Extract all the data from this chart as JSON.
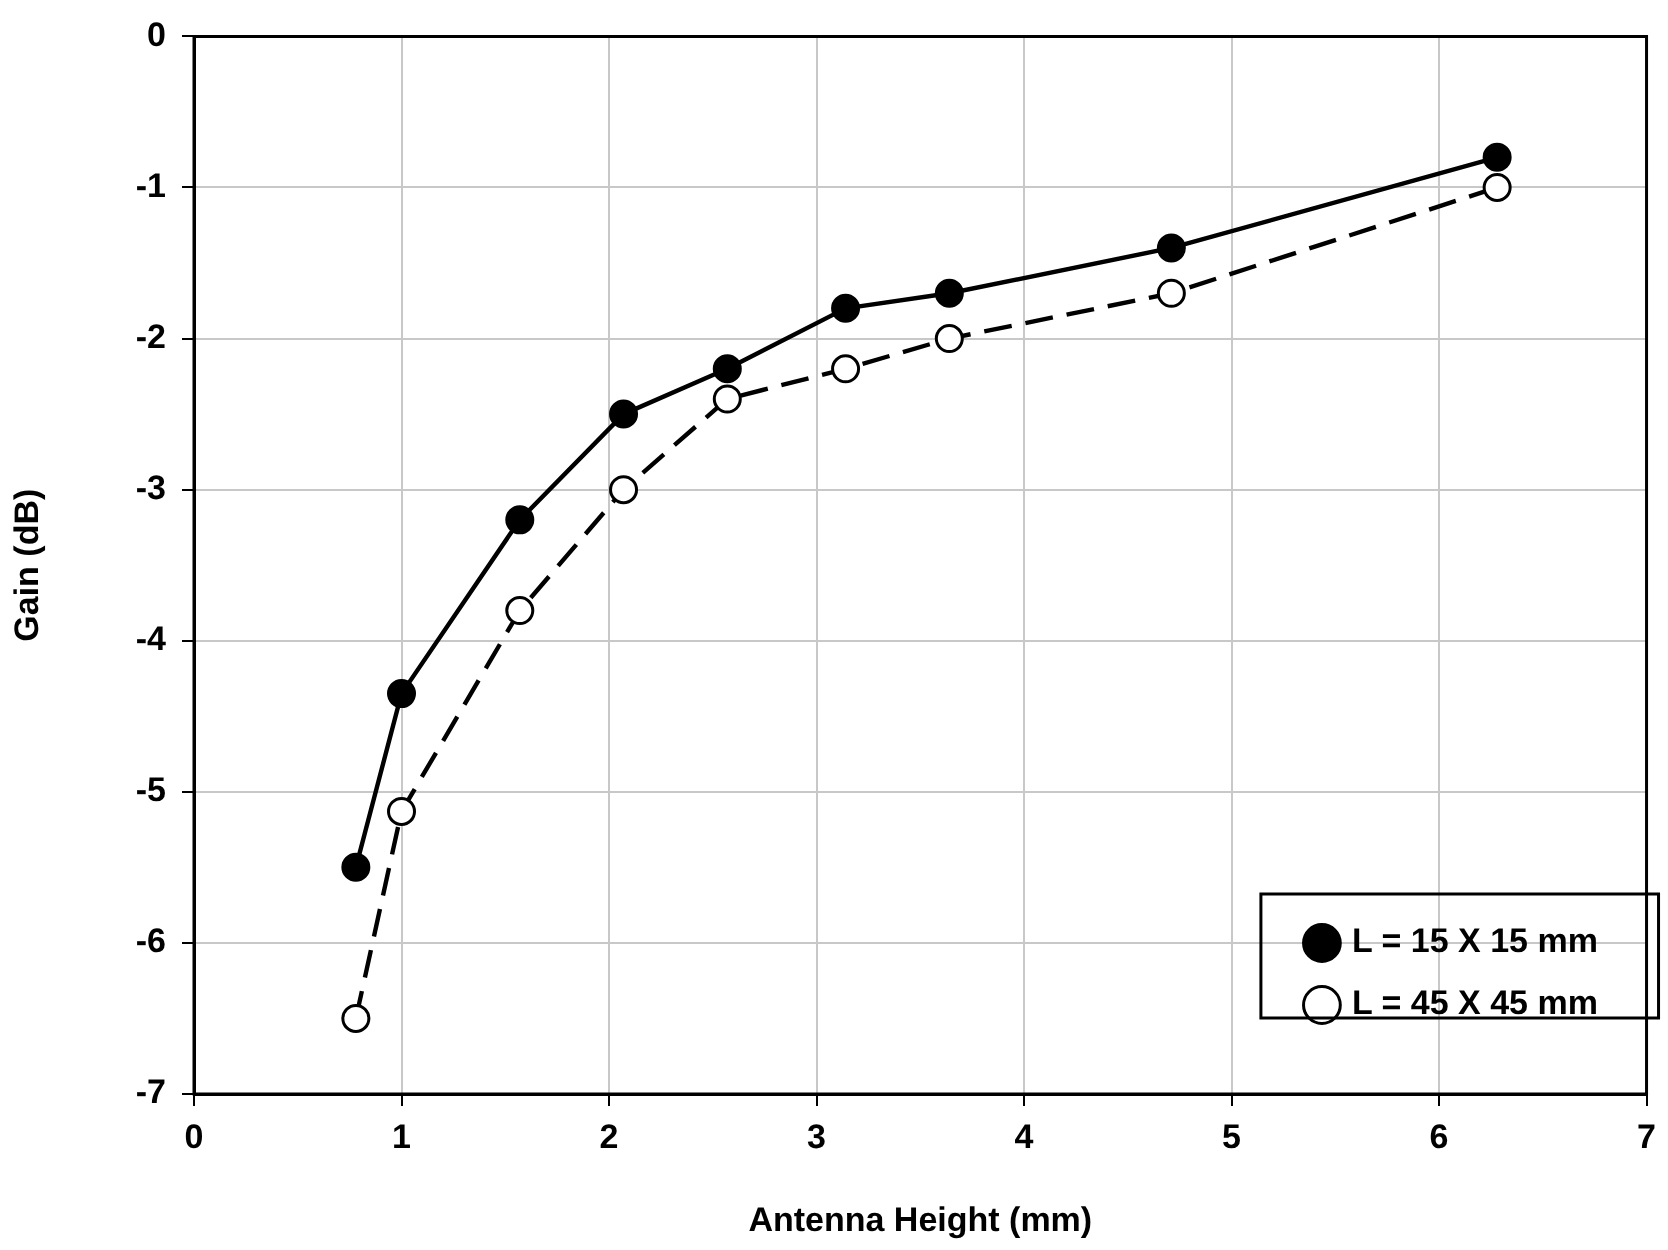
{
  "chart_data": {
    "type": "line",
    "xlabel": "Antenna Height (mm)",
    "ylabel": "Gain (dB)",
    "xlim": [
      0,
      7
    ],
    "xticks": [
      0,
      1,
      2,
      3,
      4,
      5,
      6,
      7
    ],
    "ylim": [
      -7,
      0
    ],
    "yticks": [
      -7,
      -6,
      -5,
      -4,
      -3,
      -2,
      -1,
      0
    ],
    "grid": true,
    "legend": "bottom right",
    "series": [
      {
        "name": "L = 15 X 15 mm",
        "color": "#000000",
        "marker": "circle",
        "line_style": "solid",
        "x": [
          0.78,
          1.0,
          1.57,
          2.07,
          2.57,
          3.14,
          3.64,
          4.71,
          6.28
        ],
        "values": [
          -5.5,
          -4.35,
          -3.2,
          -2.5,
          -2.2,
          -1.8,
          -1.7,
          -1.4,
          -0.8
        ]
      },
      {
        "name": "L = 45 X 45 mm",
        "color": "#000000",
        "marker": "circle",
        "line_style": "dashed",
        "x": [
          0.78,
          1.0,
          1.57,
          2.07,
          2.57,
          3.14,
          3.64,
          4.71,
          6.28
        ],
        "values": [
          -6.5,
          -5.13,
          -3.8,
          -3.0,
          -2.4,
          -2.2,
          -2.0,
          -1.7,
          -1.0
        ]
      }
    ]
  }
}
